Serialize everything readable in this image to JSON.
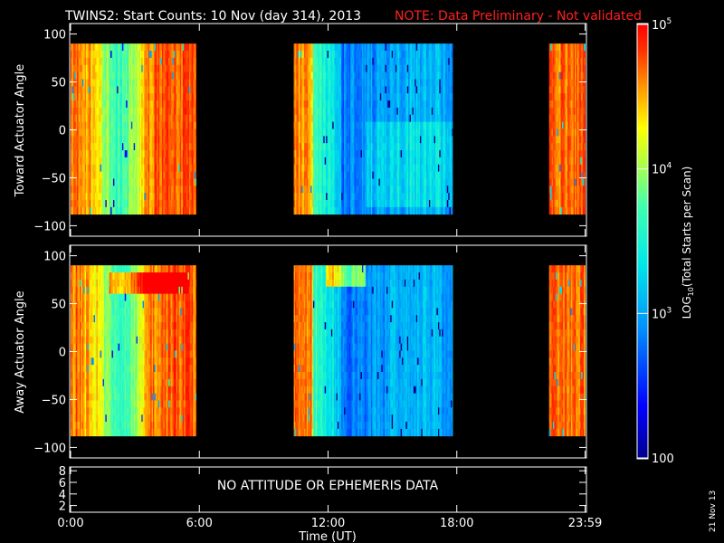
{
  "header": {
    "title": "TWINS2: Start Counts: 10 Nov (day 314), 2013",
    "note": "NOTE: Data Preliminary - Not validated",
    "note_color": "#ff2020"
  },
  "colorbar": {
    "label": "LOG10(Total Starts per Scan)",
    "label_prefix": "LOG",
    "label_sub": "10",
    "label_suffix": "(Total Starts per Scan)",
    "ticks": [
      {
        "text": "10",
        "sup": "5",
        "value": 100000
      },
      {
        "text": "10",
        "sup": "4",
        "value": 10000
      },
      {
        "text": "10",
        "sup": "3",
        "value": 1000
      },
      {
        "text": "100",
        "sup": "",
        "value": 100
      }
    ],
    "range": [
      100,
      100000
    ],
    "scale": "log"
  },
  "panels": {
    "top": {
      "ylabel": "Toward Actuator Angle"
    },
    "mid": {
      "ylabel": "Away Actuator Angle"
    },
    "bottom": {
      "message": "NO ATTITUDE OR EPHEMERIS DATA"
    }
  },
  "x_axis": {
    "label": "Time (UT)",
    "ticks": [
      "0:00",
      "6:00",
      "12:00",
      "18:00",
      "23:59"
    ]
  },
  "date_stamp": "21 Nov 13",
  "chart_data": [
    {
      "type": "heatmap",
      "panel": "top",
      "ylabel": "Toward Actuator Angle",
      "xlabel": "",
      "xlim": [
        0,
        24
      ],
      "ylim": [
        -110,
        110
      ],
      "y_ticks": [
        100,
        50,
        0,
        -50,
        -100
      ],
      "data_y_range": [
        -88,
        90
      ],
      "coverage_hours": [
        [
          0.0,
          5.85
        ],
        [
          10.4,
          17.8
        ],
        [
          22.3,
          23.98
        ]
      ],
      "color_scale": "log",
      "color_range": [
        100,
        100000
      ]
    },
    {
      "type": "heatmap",
      "panel": "mid",
      "ylabel": "Away Actuator Angle",
      "xlabel": "",
      "xlim": [
        0,
        24
      ],
      "ylim": [
        -110,
        110
      ],
      "y_ticks": [
        100,
        50,
        0,
        -50,
        -100
      ],
      "data_y_range": [
        -88,
        90
      ],
      "coverage_hours": [
        [
          0.0,
          5.85
        ],
        [
          10.4,
          17.8
        ],
        [
          22.3,
          23.98
        ]
      ],
      "color_scale": "log",
      "color_range": [
        100,
        100000
      ]
    },
    {
      "type": "line",
      "panel": "bottom",
      "xlim": [
        0,
        24
      ],
      "ylim": [
        1,
        8.5
      ],
      "y_ticks": [
        8,
        6,
        4,
        2
      ],
      "series": []
    }
  ]
}
